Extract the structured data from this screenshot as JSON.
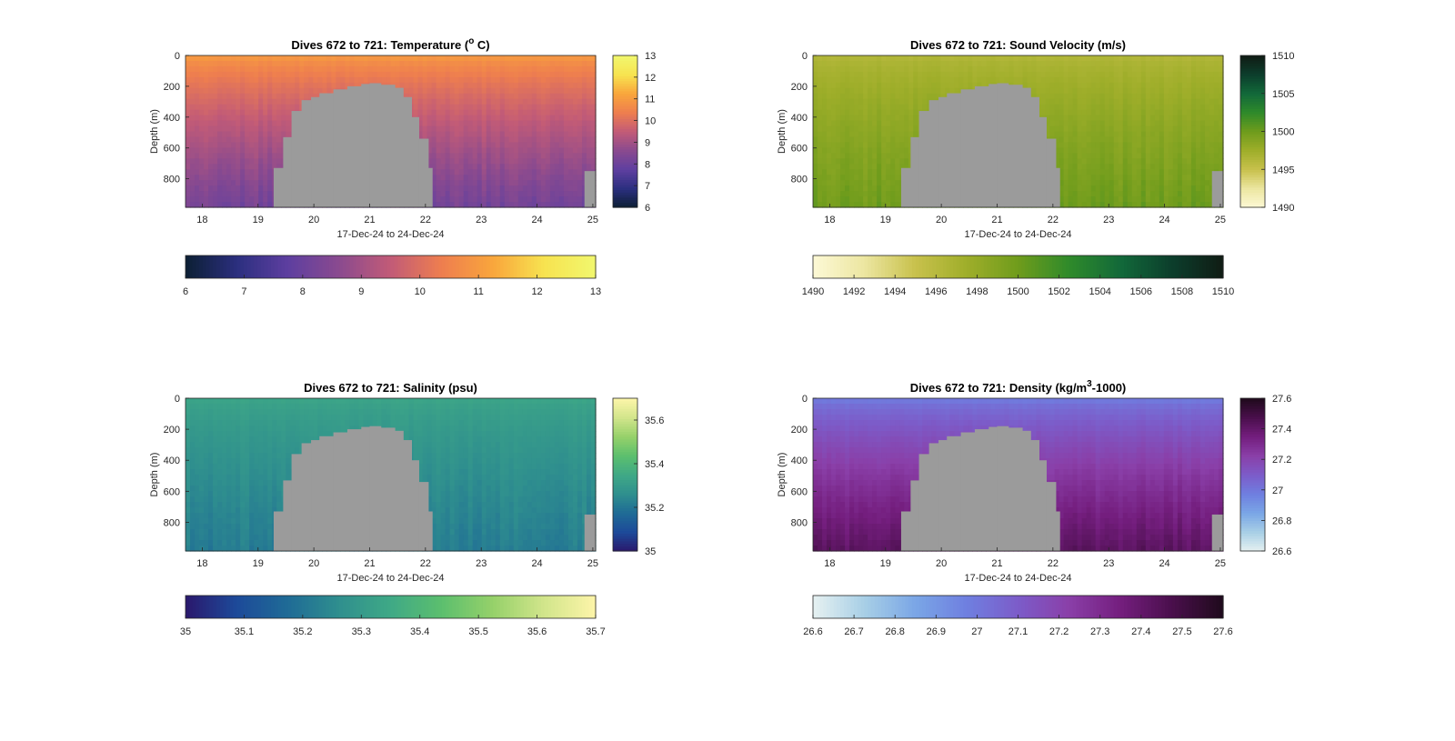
{
  "figure": {
    "xlabel": "17-Dec-24 to 24-Dec-24",
    "ylabel": "Depth (m)",
    "mask_color": "#9b9b9b"
  },
  "chart_data": [
    {
      "type": "heatmap",
      "title": "Dives 672 to 721: Temperature (",
      "title_sup": "o",
      "title_tail": " C)",
      "xlabel": "17-Dec-24 to 24-Dec-24",
      "ylabel": "Depth (m)",
      "xlim": [
        17.7,
        25.05
      ],
      "xticks": [
        "18",
        "19",
        "20",
        "21",
        "22",
        "23",
        "24",
        "25"
      ],
      "ylim": [
        0,
        985
      ],
      "yticks": [
        "0",
        "200",
        "400",
        "600",
        "800"
      ],
      "colorbar": {
        "range": [
          6,
          13
        ],
        "right_ticks": [
          "6",
          "7",
          "8",
          "9",
          "10",
          "11",
          "12",
          "13"
        ],
        "bottom_ticks": [
          "6",
          "7",
          "8",
          "9",
          "10",
          "11",
          "12",
          "13"
        ],
        "colormap": [
          "#0c1f33",
          "#2b2f7f",
          "#5e3fa0",
          "#8a4a8f",
          "#c25b77",
          "#ee7e4f",
          "#f9a63c",
          "#f7e350",
          "#f1f76e"
        ],
        "surface_value": 10.9,
        "deep_value": 8.2
      }
    },
    {
      "type": "heatmap",
      "title": "Dives 672 to 721: Sound Velocity (m/s)",
      "title_sup": "",
      "title_tail": "",
      "xlabel": "17-Dec-24 to 24-Dec-24",
      "ylabel": "Depth (m)",
      "xlim": [
        17.7,
        25.05
      ],
      "xticks": [
        "18",
        "19",
        "20",
        "21",
        "22",
        "23",
        "24",
        "25"
      ],
      "ylim": [
        0,
        985
      ],
      "yticks": [
        "0",
        "200",
        "400",
        "600",
        "800"
      ],
      "colorbar": {
        "range": [
          1490,
          1510
        ],
        "right_ticks": [
          "1490",
          "1495",
          "1500",
          "1505",
          "1510"
        ],
        "bottom_ticks": [
          "1490",
          "1492",
          "1494",
          "1496",
          "1498",
          "1500",
          "1502",
          "1504",
          "1506",
          "1508",
          "1510"
        ],
        "colormap": [
          "#fdf9d6",
          "#ece6a1",
          "#c8c14c",
          "#9fae2a",
          "#6f9c1c",
          "#2f8a2a",
          "#12693a",
          "#0c3e2c",
          "#101c14"
        ],
        "surface_value": 1496.5,
        "deep_value": 1500.0
      }
    },
    {
      "type": "heatmap",
      "title": "Dives 672 to 721: Salinity (psu)",
      "title_sup": "",
      "title_tail": "",
      "xlabel": "17-Dec-24 to 24-Dec-24",
      "ylabel": "Depth (m)",
      "xlim": [
        17.7,
        25.05
      ],
      "xticks": [
        "18",
        "19",
        "20",
        "21",
        "22",
        "23",
        "24",
        "25"
      ],
      "ylim": [
        0,
        985
      ],
      "yticks": [
        "0",
        "200",
        "400",
        "600",
        "800"
      ],
      "colorbar": {
        "range": [
          35,
          35.7
        ],
        "right_ticks": [
          "35",
          "35.2",
          "35.4",
          "35.6"
        ],
        "bottom_ticks": [
          "35",
          "35.1",
          "35.2",
          "35.3",
          "35.4",
          "35.5",
          "35.6",
          "35.7"
        ],
        "colormap": [
          "#2a186c",
          "#1d4a99",
          "#1f6b96",
          "#2f8f8e",
          "#3fa986",
          "#5cbf6e",
          "#96d16a",
          "#d2e58b",
          "#fdf5a9"
        ],
        "surface_value": 35.33,
        "deep_value": 35.22
      }
    },
    {
      "type": "heatmap",
      "title": "Dives 672 to 721: Density (kg/m",
      "title_sup": "3",
      "title_tail": "-1000)",
      "xlabel": "17-Dec-24 to 24-Dec-24",
      "ylabel": "Depth (m)",
      "xlim": [
        17.7,
        25.05
      ],
      "xticks": [
        "18",
        "19",
        "20",
        "21",
        "22",
        "23",
        "24",
        "25"
      ],
      "ylim": [
        0,
        985
      ],
      "yticks": [
        "0",
        "200",
        "400",
        "600",
        "800"
      ],
      "colorbar": {
        "range": [
          26.6,
          27.6
        ],
        "right_ticks": [
          "26.6",
          "26.8",
          "27",
          "27.2",
          "27.4",
          "27.6"
        ],
        "bottom_ticks": [
          "26.6",
          "26.7",
          "26.8",
          "26.9",
          "27",
          "27.1",
          "27.2",
          "27.3",
          "27.4",
          "27.5",
          "27.6"
        ],
        "colormap": [
          "#e6f1f1",
          "#a8cfe6",
          "#7aa6e6",
          "#6f7fe0",
          "#7c5cc9",
          "#8a3fa8",
          "#741e7e",
          "#4a0f4c",
          "#1f0a1c"
        ],
        "surface_value": 27.0,
        "deep_value": 27.42
      }
    }
  ]
}
